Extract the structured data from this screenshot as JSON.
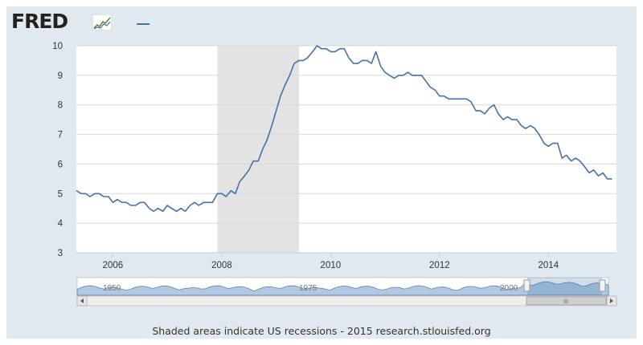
{
  "header": {
    "logo_text": "FRED",
    "logo_icon": "fred-sparkline-icon"
  },
  "footer": {
    "note": "Shaded areas indicate US recessions - 2015 research.stlouisfed.org"
  },
  "colors": {
    "series": "#4572a7",
    "recession": "#e3e3e3",
    "frame": "#e1e9f0",
    "navigator_fill": "#a3bfdc"
  },
  "navigator": {
    "labels": [
      "1950",
      "1975",
      "2000"
    ],
    "scrollbar_grip": "III"
  },
  "chart_data": {
    "type": "line",
    "title": "",
    "xlabel": "",
    "ylabel": "",
    "xlim": [
      2005.33,
      2015.25
    ],
    "ylim": [
      3,
      10
    ],
    "yticks": [
      3,
      4,
      5,
      6,
      7,
      8,
      9,
      10
    ],
    "xticks": [
      2006,
      2008,
      2010,
      2012,
      2014
    ],
    "grid": true,
    "legend": "top-left",
    "recessions": [
      [
        2007.92,
        2009.42
      ]
    ],
    "series": [
      {
        "x": [
          2005.33,
          2005.42,
          2005.5,
          2005.58,
          2005.67,
          2005.75,
          2005.83,
          2005.92,
          2006.0,
          2006.08,
          2006.17,
          2006.25,
          2006.33,
          2006.42,
          2006.5,
          2006.58,
          2006.67,
          2006.75,
          2006.83,
          2006.92,
          2007.0,
          2007.08,
          2007.17,
          2007.25,
          2007.33,
          2007.42,
          2007.5,
          2007.58,
          2007.67,
          2007.75,
          2007.83,
          2007.92,
          2008.0,
          2008.08,
          2008.17,
          2008.25,
          2008.33,
          2008.42,
          2008.5,
          2008.58,
          2008.67,
          2008.75,
          2008.83,
          2008.92,
          2009.0,
          2009.08,
          2009.17,
          2009.25,
          2009.33,
          2009.42,
          2009.5,
          2009.58,
          2009.67,
          2009.75,
          2009.83,
          2009.92,
          2010.0,
          2010.08,
          2010.17,
          2010.25,
          2010.33,
          2010.42,
          2010.5,
          2010.58,
          2010.67,
          2010.75,
          2010.83,
          2010.92,
          2011.0,
          2011.08,
          2011.17,
          2011.25,
          2011.33,
          2011.42,
          2011.5,
          2011.58,
          2011.67,
          2011.75,
          2011.83,
          2011.92,
          2012.0,
          2012.08,
          2012.17,
          2012.25,
          2012.33,
          2012.42,
          2012.5,
          2012.58,
          2012.67,
          2012.75,
          2012.83,
          2012.92,
          2013.0,
          2013.08,
          2013.17,
          2013.25,
          2013.33,
          2013.42,
          2013.5,
          2013.58,
          2013.67,
          2013.75,
          2013.83,
          2013.92,
          2014.0,
          2014.08,
          2014.17,
          2014.25,
          2014.33,
          2014.42,
          2014.5,
          2014.58,
          2014.67,
          2014.75,
          2014.83,
          2014.92,
          2015.0,
          2015.08,
          2015.17
        ],
        "y": [
          5.1,
          5.0,
          5.0,
          4.9,
          5.0,
          5.0,
          4.9,
          4.9,
          4.7,
          4.8,
          4.7,
          4.7,
          4.6,
          4.6,
          4.7,
          4.7,
          4.5,
          4.4,
          4.5,
          4.4,
          4.6,
          4.5,
          4.4,
          4.5,
          4.4,
          4.6,
          4.7,
          4.6,
          4.7,
          4.7,
          4.7,
          5.0,
          5.0,
          4.9,
          5.1,
          5.0,
          5.4,
          5.6,
          5.8,
          6.1,
          6.1,
          6.5,
          6.8,
          7.3,
          7.8,
          8.3,
          8.7,
          9.0,
          9.4,
          9.5,
          9.5,
          9.6,
          9.8,
          10.0,
          9.9,
          9.9,
          9.8,
          9.8,
          9.9,
          9.9,
          9.6,
          9.4,
          9.4,
          9.5,
          9.5,
          9.4,
          9.8,
          9.3,
          9.1,
          9.0,
          8.9,
          9.0,
          9.0,
          9.1,
          9.0,
          9.0,
          9.0,
          8.8,
          8.6,
          8.5,
          8.3,
          8.3,
          8.2,
          8.2,
          8.2,
          8.2,
          8.2,
          8.1,
          7.8,
          7.8,
          7.7,
          7.9,
          8.0,
          7.7,
          7.5,
          7.6,
          7.5,
          7.5,
          7.3,
          7.2,
          7.3,
          7.2,
          7.0,
          6.7,
          6.6,
          6.7,
          6.7,
          6.2,
          6.3,
          6.1,
          6.2,
          6.1,
          5.9,
          5.7,
          5.8,
          5.6,
          5.7,
          5.5,
          5.5
        ]
      }
    ]
  }
}
